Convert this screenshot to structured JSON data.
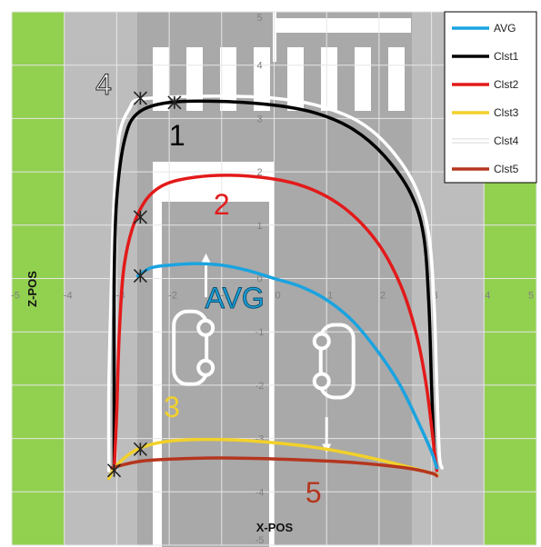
{
  "chart_data": {
    "type": "line",
    "title": "",
    "xlabel": "X-POS",
    "ylabel": "Z-POS",
    "xlim": [
      -5,
      5
    ],
    "ylim": [
      -5,
      5
    ],
    "x_ticks": [
      "-5",
      "-4",
      "-3",
      "-2",
      "-1",
      "0",
      "1",
      "2",
      "3",
      "4",
      "5"
    ],
    "y_ticks": [
      "5",
      "4",
      "3",
      "2",
      "1",
      "0",
      "-1",
      "-2",
      "-3",
      "-4",
      "-5"
    ],
    "grid": true,
    "legend_position": "top-right",
    "background": "road-intersection-top-view",
    "series": [
      {
        "name": "AVG",
        "color": "#1aa3e0",
        "points": [
          [
            -2.6,
            0.05
          ],
          [
            -2.35,
            0.2
          ],
          [
            -2.0,
            0.25
          ],
          [
            -1.5,
            0.28
          ],
          [
            -1.0,
            0.25
          ],
          [
            -0.5,
            0.15
          ],
          [
            0,
            0.0
          ],
          [
            0.5,
            -0.15
          ],
          [
            1.0,
            -0.4
          ],
          [
            1.5,
            -0.8
          ],
          [
            2.0,
            -1.4
          ],
          [
            2.4,
            -2.0
          ],
          [
            2.75,
            -2.7
          ],
          [
            3.0,
            -3.25
          ],
          [
            3.1,
            -3.55
          ]
        ]
      },
      {
        "name": "Clst1",
        "color": "#000000",
        "points": [
          [
            -3.05,
            -3.5
          ],
          [
            -3.05,
            -2.0
          ],
          [
            -3.05,
            0.0
          ],
          [
            -3.0,
            1.5
          ],
          [
            -2.85,
            2.6
          ],
          [
            -2.6,
            3.1
          ],
          [
            -2.0,
            3.3
          ],
          [
            -1.0,
            3.32
          ],
          [
            0,
            3.25
          ],
          [
            0.8,
            3.1
          ],
          [
            1.5,
            2.8
          ],
          [
            2.1,
            2.3
          ],
          [
            2.6,
            1.6
          ],
          [
            2.85,
            0.8
          ],
          [
            2.95,
            -0.5
          ],
          [
            3.0,
            -2.0
          ],
          [
            3.05,
            -3.2
          ],
          [
            3.1,
            -3.55
          ]
        ]
      },
      {
        "name": "Clst2",
        "color": "#e31a1a",
        "points": [
          [
            -3.05,
            -3.6
          ],
          [
            -3.0,
            -2.5
          ],
          [
            -2.95,
            -1.0
          ],
          [
            -2.85,
            0.3
          ],
          [
            -2.6,
            1.2
          ],
          [
            -2.2,
            1.7
          ],
          [
            -1.5,
            1.9
          ],
          [
            -0.5,
            1.92
          ],
          [
            0.5,
            1.75
          ],
          [
            1.3,
            1.35
          ],
          [
            1.95,
            0.7
          ],
          [
            2.4,
            -0.1
          ],
          [
            2.7,
            -1.0
          ],
          [
            2.9,
            -2.0
          ],
          [
            3.05,
            -3.2
          ],
          [
            3.1,
            -3.6
          ]
        ]
      },
      {
        "name": "Clst3",
        "color": "#f2d12a",
        "points": [
          [
            -3.15,
            -3.75
          ],
          [
            -3.0,
            -3.5
          ],
          [
            -2.6,
            -3.2
          ],
          [
            -2.0,
            -3.05
          ],
          [
            -1.0,
            -3.02
          ],
          [
            0,
            -3.08
          ],
          [
            1.0,
            -3.2
          ],
          [
            2.0,
            -3.4
          ],
          [
            3.0,
            -3.65
          ],
          [
            3.1,
            -3.7
          ]
        ]
      },
      {
        "name": "Clst4",
        "color": "#ffffff",
        "points": [
          [
            -3.15,
            -3.6
          ],
          [
            -3.15,
            -2.0
          ],
          [
            -3.1,
            0.0
          ],
          [
            -3.05,
            1.5
          ],
          [
            -2.95,
            2.7
          ],
          [
            -2.75,
            3.2
          ],
          [
            -2.6,
            3.35
          ],
          [
            -2.0,
            3.4
          ],
          [
            -1.0,
            3.42
          ],
          [
            0,
            3.38
          ],
          [
            0.8,
            3.25
          ],
          [
            1.6,
            2.95
          ],
          [
            2.2,
            2.45
          ],
          [
            2.7,
            1.7
          ],
          [
            2.95,
            0.8
          ],
          [
            3.05,
            -0.5
          ],
          [
            3.1,
            -2.0
          ],
          [
            3.15,
            -3.3
          ],
          [
            3.2,
            -3.55
          ]
        ]
      },
      {
        "name": "Clst5",
        "color": "#b5361e",
        "points": [
          [
            -3.1,
            -3.55
          ],
          [
            -2.5,
            -3.42
          ],
          [
            -1.5,
            -3.37
          ],
          [
            -0.5,
            -3.37
          ],
          [
            0.5,
            -3.4
          ],
          [
            1.5,
            -3.45
          ],
          [
            2.5,
            -3.55
          ],
          [
            3.0,
            -3.65
          ],
          [
            3.1,
            -3.7
          ]
        ]
      }
    ],
    "markers": [
      {
        "x": -2.55,
        "y": 3.38
      },
      {
        "x": -1.9,
        "y": 3.3
      },
      {
        "x": -2.55,
        "y": 1.15
      },
      {
        "x": -2.55,
        "y": 0.05
      },
      {
        "x": -2.55,
        "y": -3.2
      },
      {
        "x": -3.05,
        "y": -3.6
      }
    ],
    "annotations": [
      {
        "text": "4",
        "x": -3.25,
        "y": 3.45,
        "color": "#ffffff"
      },
      {
        "text": "1",
        "x": -1.85,
        "y": 2.5,
        "color": "#000000"
      },
      {
        "text": "2",
        "x": -1.0,
        "y": 1.2,
        "color": "#e31a1a"
      },
      {
        "text": "AVG",
        "x": -0.75,
        "y": -0.55,
        "color": "#1aa3e0"
      },
      {
        "text": "3",
        "x": -1.95,
        "y": -2.6,
        "color": "#f2d12a"
      },
      {
        "text": "5",
        "x": 0.75,
        "y": -4.2,
        "color": "#b5361e"
      }
    ]
  }
}
